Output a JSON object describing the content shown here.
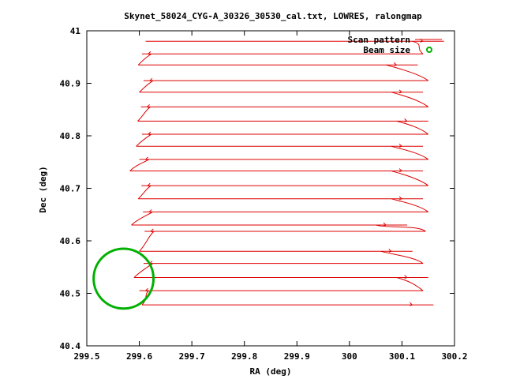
{
  "chart_data": {
    "type": "line",
    "title": "Skynet_58024_CYG-A_30326_30530_cal.txt, LOWRES, ralongmap",
    "xlabel": "RA (deg)",
    "ylabel": "Dec (deg)",
    "xlim": [
      299.5,
      300.2
    ],
    "ylim": [
      40.4,
      41.0
    ],
    "x_ticks": [
      299.5,
      299.6,
      299.7,
      299.8,
      299.9,
      300.0,
      300.1,
      300.2
    ],
    "x_tick_labels": [
      "299.5",
      "299.6",
      "299.7",
      "299.8",
      "299.9",
      "300",
      "300.1",
      "300.2"
    ],
    "y_ticks": [
      40.4,
      40.5,
      40.6,
      40.7,
      40.8,
      40.9,
      41.0
    ],
    "y_tick_labels": [
      "40.4",
      "40.5",
      "40.6",
      "40.7",
      "40.8",
      "40.9",
      "41"
    ],
    "grid": false,
    "legend_position": "top-right",
    "series": [
      {
        "name": "Scan pattern",
        "color": "#dd0000",
        "kind": "raster-scan",
        "rows": [
          {
            "dec": 40.98,
            "ra_left": 299.612,
            "ra_right": 300.18,
            "dir": "E"
          },
          {
            "dec": 40.956,
            "ra_left": 299.605,
            "ra_right": 300.14,
            "dir": "W"
          },
          {
            "dec": 40.935,
            "ra_left": 299.598,
            "ra_right": 300.13,
            "dir": "E"
          },
          {
            "dec": 40.905,
            "ra_left": 299.608,
            "ra_right": 300.15,
            "dir": "W"
          },
          {
            "dec": 40.883,
            "ra_left": 299.6,
            "ra_right": 300.14,
            "dir": "E"
          },
          {
            "dec": 40.855,
            "ra_left": 299.603,
            "ra_right": 300.15,
            "dir": "W"
          },
          {
            "dec": 40.828,
            "ra_left": 299.597,
            "ra_right": 300.15,
            "dir": "E"
          },
          {
            "dec": 40.803,
            "ra_left": 299.605,
            "ra_right": 300.15,
            "dir": "W"
          },
          {
            "dec": 40.78,
            "ra_left": 299.594,
            "ra_right": 300.14,
            "dir": "E"
          },
          {
            "dec": 40.755,
            "ra_left": 299.6,
            "ra_right": 300.15,
            "dir": "W"
          },
          {
            "dec": 40.733,
            "ra_left": 299.582,
            "ra_right": 300.14,
            "dir": "E"
          },
          {
            "dec": 40.705,
            "ra_left": 299.604,
            "ra_right": 300.15,
            "dir": "W"
          },
          {
            "dec": 40.68,
            "ra_left": 299.598,
            "ra_right": 300.14,
            "dir": "E"
          },
          {
            "dec": 40.655,
            "ra_left": 299.607,
            "ra_right": 300.15,
            "dir": "W"
          },
          {
            "dec": 40.63,
            "ra_left": 299.585,
            "ra_right": 300.11,
            "dir": "E"
          },
          {
            "dec": 40.618,
            "ra_left": 299.61,
            "ra_right": 300.145,
            "dir": "W"
          },
          {
            "dec": 40.58,
            "ra_left": 299.6,
            "ra_right": 300.12,
            "dir": "E"
          },
          {
            "dec": 40.557,
            "ra_left": 299.608,
            "ra_right": 300.14,
            "dir": "W"
          },
          {
            "dec": 40.53,
            "ra_left": 299.59,
            "ra_right": 300.15,
            "dir": "E"
          },
          {
            "dec": 40.505,
            "ra_left": 299.6,
            "ra_right": 300.14,
            "dir": "W"
          },
          {
            "dec": 40.478,
            "ra_left": 299.605,
            "ra_right": 300.16,
            "dir": "E"
          }
        ]
      },
      {
        "name": "Beam size",
        "color": "#00b000",
        "kind": "circle",
        "center": {
          "ra": 299.57,
          "dec": 40.528
        },
        "radius_deg": 0.057
      }
    ]
  }
}
